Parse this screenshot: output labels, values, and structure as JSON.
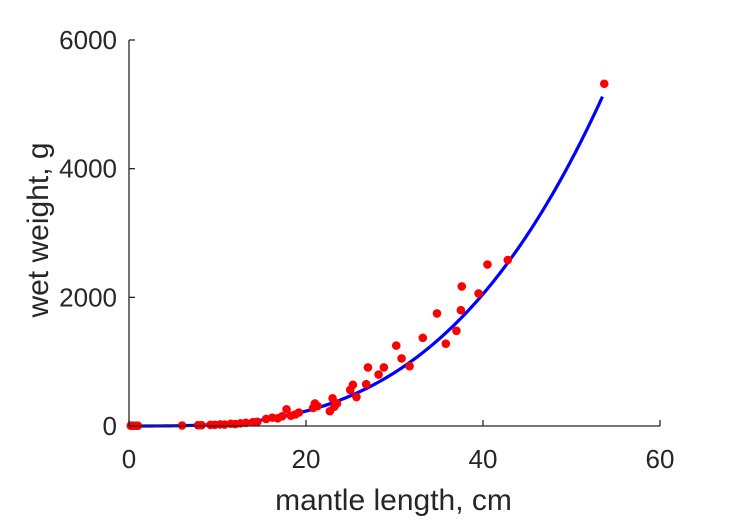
{
  "chart_data": {
    "type": "scatter",
    "title": "",
    "xlabel": "mantle length, cm",
    "ylabel": "wet weight, g",
    "xlim": [
      0,
      60
    ],
    "ylim": [
      0,
      6000
    ],
    "xticks": [
      "0",
      "20",
      "40",
      "60"
    ],
    "yticks": [
      "0",
      "2000",
      "4000",
      "6000"
    ],
    "grid": false,
    "legend": "none",
    "colors": {
      "points": "#ff0000",
      "fit": "#0000ff",
      "axes": "#262626"
    },
    "series": [
      {
        "type": "scatter",
        "points": [
          [
            0.2,
            5
          ],
          [
            0.5,
            5
          ],
          [
            0.8,
            5
          ],
          [
            1.0,
            5
          ],
          [
            6.0,
            8
          ],
          [
            7.8,
            12
          ],
          [
            8.2,
            12
          ],
          [
            9.2,
            18
          ],
          [
            9.7,
            18
          ],
          [
            10.3,
            25
          ],
          [
            10.8,
            22
          ],
          [
            11.5,
            35
          ],
          [
            12.0,
            30
          ],
          [
            12.6,
            42
          ],
          [
            13.2,
            50
          ],
          [
            14.0,
            60
          ],
          [
            14.5,
            65
          ],
          [
            15.5,
            110
          ],
          [
            16.2,
            130
          ],
          [
            16.8,
            120
          ],
          [
            17.3,
            150
          ],
          [
            17.8,
            260
          ],
          [
            18.3,
            160
          ],
          [
            18.8,
            180
          ],
          [
            19.2,
            210
          ],
          [
            20.8,
            280
          ],
          [
            21.0,
            350
          ],
          [
            21.3,
            310
          ],
          [
            22.7,
            230
          ],
          [
            23.0,
            430
          ],
          [
            23.2,
            300
          ],
          [
            23.5,
            350
          ],
          [
            25.0,
            560
          ],
          [
            25.3,
            640
          ],
          [
            25.7,
            450
          ],
          [
            26.8,
            650
          ],
          [
            27.0,
            910
          ],
          [
            28.2,
            800
          ],
          [
            28.8,
            910
          ],
          [
            30.2,
            1250
          ],
          [
            30.8,
            1050
          ],
          [
            31.7,
            930
          ],
          [
            33.2,
            1370
          ],
          [
            34.8,
            1750
          ],
          [
            35.8,
            1280
          ],
          [
            37.0,
            1480
          ],
          [
            37.5,
            1800
          ],
          [
            37.6,
            2170
          ],
          [
            39.5,
            2060
          ],
          [
            40.5,
            2510
          ],
          [
            42.8,
            2580
          ],
          [
            53.7,
            5320
          ]
        ]
      },
      {
        "type": "line",
        "model": "power",
        "a": 0.0187,
        "b": 3.146,
        "x_range": [
          0,
          53.5
        ]
      }
    ]
  }
}
